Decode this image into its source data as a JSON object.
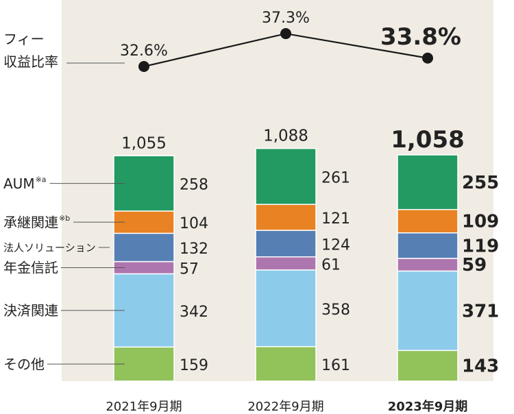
{
  "chart_data": {
    "type": "bar",
    "stacked": true,
    "categories": [
      "2021年9月期",
      "2022年9月期",
      "2023年9月期"
    ],
    "highlight_index": 2,
    "series": [
      {
        "name": "その他",
        "values": [
          159,
          161,
          143
        ],
        "color": "#92c25a"
      },
      {
        "name": "決済関連",
        "values": [
          342,
          358,
          371
        ],
        "color": "#8dcbea"
      },
      {
        "name": "年金信託",
        "values": [
          57,
          61,
          59
        ],
        "color": "#ae76ae"
      },
      {
        "name": "法人ソリューション",
        "values": [
          132,
          124,
          119
        ],
        "color": "#5680b4"
      },
      {
        "name": "承継関連",
        "name_sup": "※b",
        "values": [
          104,
          121,
          109
        ],
        "color": "#e88222"
      },
      {
        "name": "AUM",
        "name_sup": "※a",
        "values": [
          258,
          261,
          255
        ],
        "color": "#229a62"
      }
    ],
    "value_labels": [
      [
        "159",
        "342",
        "57",
        "132",
        "104",
        "258"
      ],
      [
        "161",
        "358",
        "61",
        "124",
        "121",
        "261"
      ],
      [
        "143",
        "371",
        "59",
        "119",
        "109",
        "255"
      ]
    ],
    "totals": [
      1055,
      1088,
      1058
    ],
    "total_labels": [
      "1,055",
      "1,088",
      "1,058"
    ],
    "fee_ratio": {
      "name_line1": "フィー",
      "name_line2": "収益比率",
      "values": [
        32.6,
        37.3,
        33.8
      ],
      "labels": [
        "32.6%",
        "37.3%",
        "33.8%"
      ],
      "range": [
        30,
        40
      ]
    },
    "ylim": [
      0,
      1100
    ]
  },
  "colors": {
    "band": "#f0ece4",
    "text": "#222222",
    "leader": "#555555",
    "line": "#1a1a1a"
  }
}
